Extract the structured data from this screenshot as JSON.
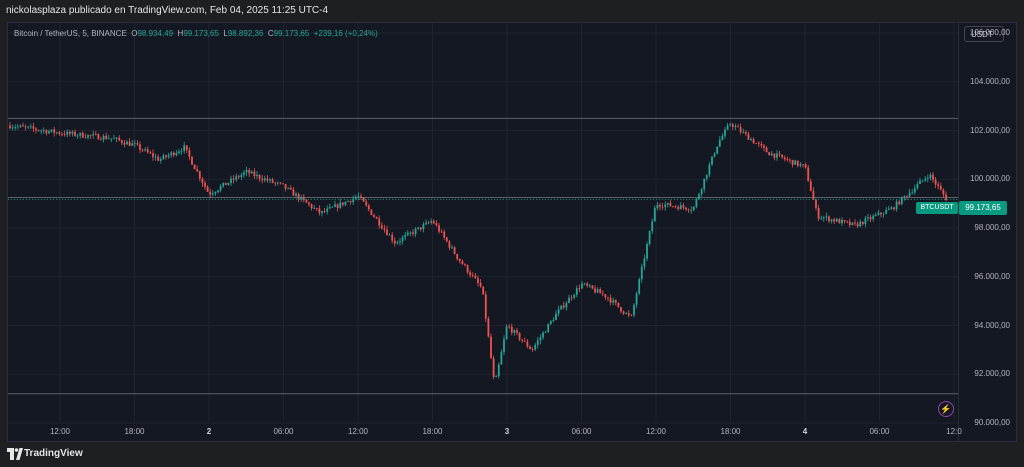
{
  "header": {
    "publish_text": "nickolasplaza publicado en TradingView.com, Feb 04, 2025 11:25 UTC-4"
  },
  "legend": {
    "symbol": "Bitcoin / TetherUS, 5, BINANCE",
    "o_label": "O",
    "o_value": "98.934,49",
    "h_label": "H",
    "h_value": "99.173,65",
    "l_label": "L",
    "l_value": "98.892,36",
    "c_label": "C",
    "c_value": "99.173,65",
    "change": "+239,16 (+0,24%)"
  },
  "price_axis": {
    "currency": "USDT",
    "ticks": [
      "106.000,00",
      "104.000,00",
      "102.000,00",
      "100.000,00",
      "98.000,00",
      "96.000,00",
      "94.000,00",
      "92.000,00",
      "90.000,00"
    ]
  },
  "time_axis": {
    "ticks": [
      {
        "label": "12:00",
        "bold": false
      },
      {
        "label": "18:00",
        "bold": false
      },
      {
        "label": "2",
        "bold": true
      },
      {
        "label": "06:00",
        "bold": false
      },
      {
        "label": "12:00",
        "bold": false
      },
      {
        "label": "18:00",
        "bold": false
      },
      {
        "label": "3",
        "bold": true
      },
      {
        "label": "06:00",
        "bold": false
      },
      {
        "label": "12:00",
        "bold": false
      },
      {
        "label": "18:00",
        "bold": false
      },
      {
        "label": "4",
        "bold": true
      },
      {
        "label": "06:00",
        "bold": false
      },
      {
        "label": "12:0",
        "bold": false
      }
    ]
  },
  "last_price": {
    "symbol": "BTCUSDT",
    "value": "99.173,65"
  },
  "footer": {
    "brand": "TradingView"
  },
  "colors": {
    "up": "#26a69a",
    "down": "#ef5350",
    "background": "#141823",
    "accent": "#089981"
  },
  "chart_data": {
    "type": "candlestick",
    "symbol": "BTCUSDT",
    "interval": "5",
    "ylim": [
      90000,
      106000
    ],
    "horizontal_lines": [
      102500,
      99250,
      91200
    ],
    "price_path": [
      {
        "x": "Feb 01 08:00",
        "y": 102200
      },
      {
        "x": "Feb 01 12:00",
        "y": 101900
      },
      {
        "x": "Feb 01 16:00",
        "y": 101700
      },
      {
        "x": "Feb 01 18:00",
        "y": 101400
      },
      {
        "x": "Feb 01 20:00",
        "y": 100800
      },
      {
        "x": "Feb 01 22:00",
        "y": 101300
      },
      {
        "x": "Feb 02 00:00",
        "y": 99400
      },
      {
        "x": "Feb 02 03:00",
        "y": 100300
      },
      {
        "x": "Feb 02 06:00",
        "y": 99700
      },
      {
        "x": "Feb 02 09:00",
        "y": 98600
      },
      {
        "x": "Feb 02 12:00",
        "y": 99300
      },
      {
        "x": "Feb 02 15:00",
        "y": 97400
      },
      {
        "x": "Feb 02 18:00",
        "y": 98300
      },
      {
        "x": "Feb 02 20:00",
        "y": 96800
      },
      {
        "x": "Feb 02 22:00",
        "y": 95500
      },
      {
        "x": "Feb 02 23:00",
        "y": 91500
      },
      {
        "x": "Feb 03 00:00",
        "y": 94000
      },
      {
        "x": "Feb 03 02:00",
        "y": 93000
      },
      {
        "x": "Feb 03 04:00",
        "y": 94500
      },
      {
        "x": "Feb 03 06:00",
        "y": 95700
      },
      {
        "x": "Feb 03 08:00",
        "y": 95200
      },
      {
        "x": "Feb 03 10:00",
        "y": 94300
      },
      {
        "x": "Feb 03 12:00",
        "y": 99000
      },
      {
        "x": "Feb 03 15:00",
        "y": 98800
      },
      {
        "x": "Feb 03 17:00",
        "y": 101500
      },
      {
        "x": "Feb 03 18:00",
        "y": 102300
      },
      {
        "x": "Feb 03 21:00",
        "y": 101100
      },
      {
        "x": "Feb 04 00:00",
        "y": 100500
      },
      {
        "x": "Feb 04 01:00",
        "y": 98500
      },
      {
        "x": "Feb 04 04:00",
        "y": 98100
      },
      {
        "x": "Feb 04 07:00",
        "y": 98800
      },
      {
        "x": "Feb 04 10:00",
        "y": 100200
      },
      {
        "x": "Feb 04 11:25",
        "y": 99174
      }
    ]
  }
}
